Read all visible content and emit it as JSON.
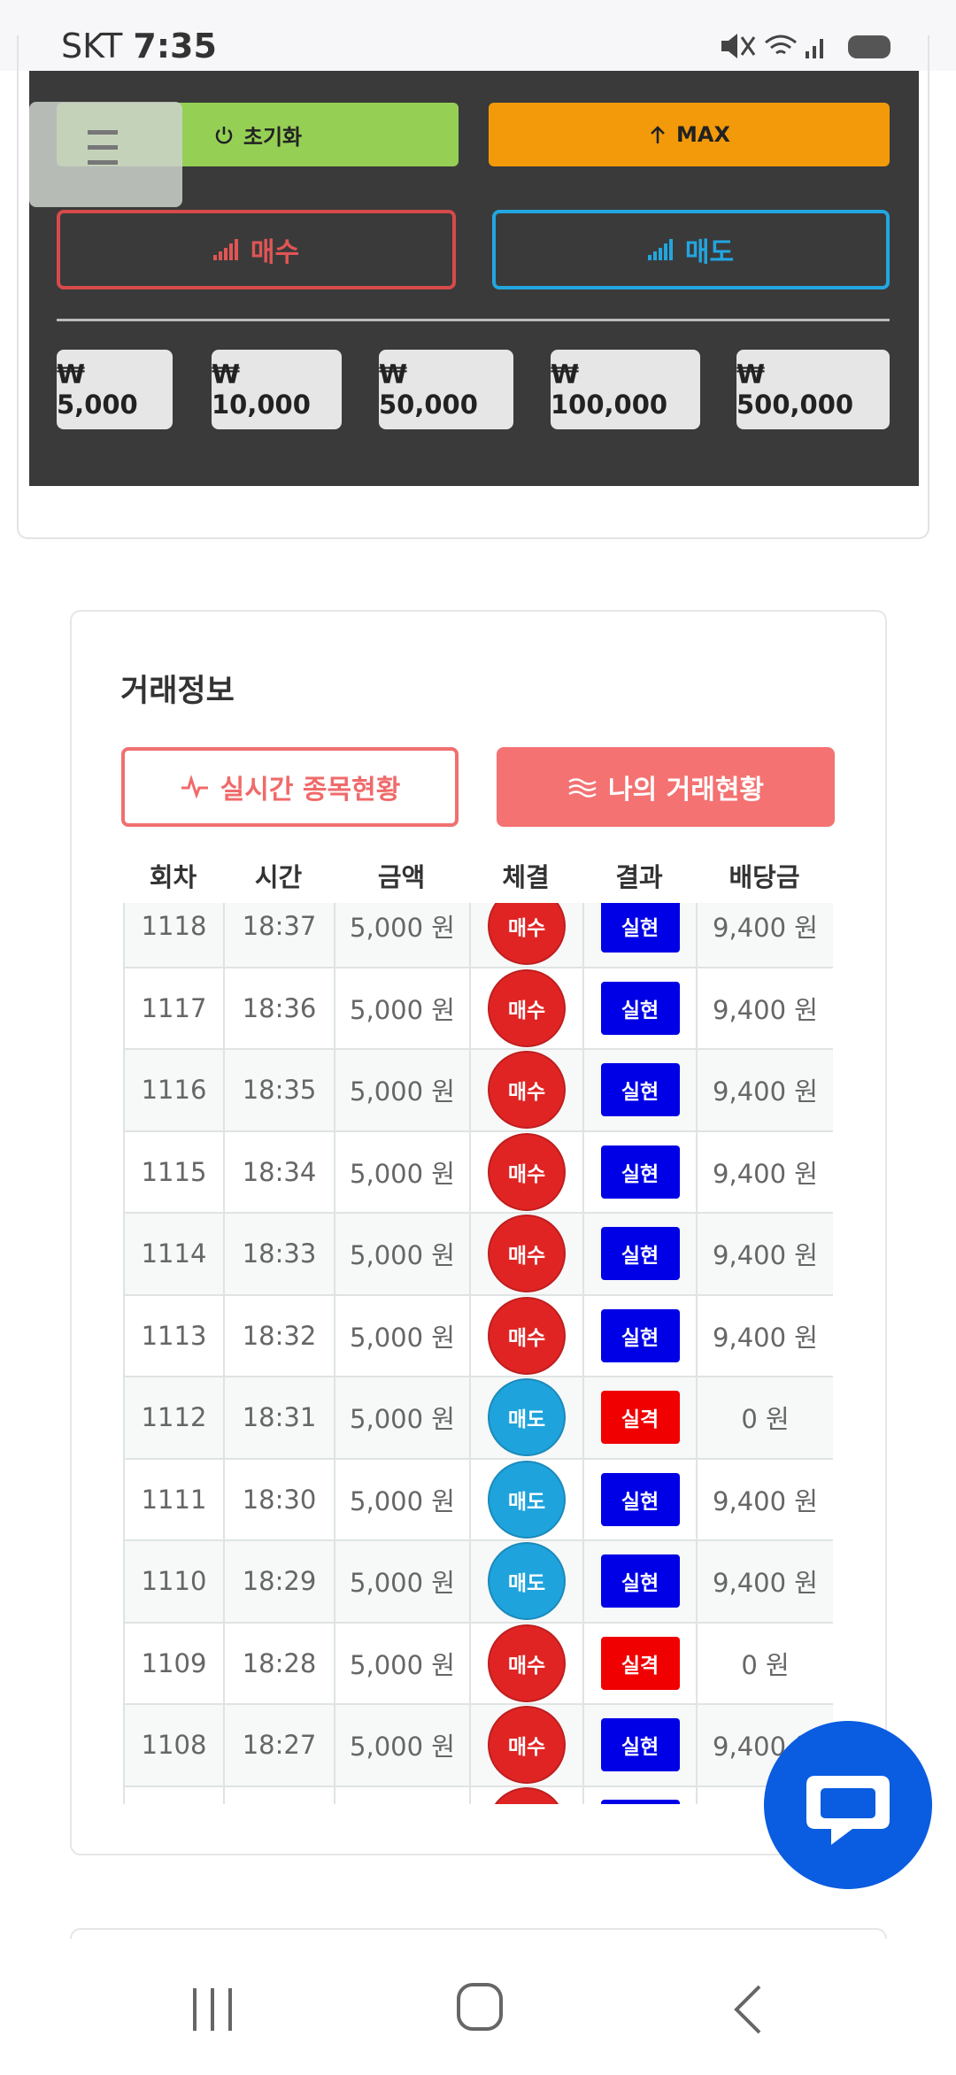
{
  "status": {
    "carrier": "SKT",
    "time": "7:35"
  },
  "controls": {
    "reset": "초기화",
    "max": "MAX",
    "buy": "매수",
    "sell": "매도",
    "amounts": [
      "₩ 5,000",
      "₩ 10,000",
      "₩ 50,000",
      "₩ 100,000",
      "₩ 500,000"
    ]
  },
  "trade": {
    "title": "거래정보",
    "tabs": [
      "실시간 종목현황",
      "나의 거래현황"
    ],
    "headers": [
      "회차",
      "시간",
      "금액",
      "체결",
      "결과",
      "배당금"
    ],
    "rows": [
      [
        "1118",
        "18:37",
        "5,000 원",
        "매수",
        "실현",
        "9,400 원"
      ],
      [
        "1117",
        "18:36",
        "5,000 원",
        "매수",
        "실현",
        "9,400 원"
      ],
      [
        "1116",
        "18:35",
        "5,000 원",
        "매수",
        "실현",
        "9,400 원"
      ],
      [
        "1115",
        "18:34",
        "5,000 원",
        "매수",
        "실현",
        "9,400 원"
      ],
      [
        "1114",
        "18:33",
        "5,000 원",
        "매수",
        "실현",
        "9,400 원"
      ],
      [
        "1113",
        "18:32",
        "5,000 원",
        "매수",
        "실현",
        "9,400 원"
      ],
      [
        "1112",
        "18:31",
        "5,000 원",
        "매도",
        "실격",
        "0 원"
      ],
      [
        "1111",
        "18:30",
        "5,000 원",
        "매도",
        "실현",
        "9,400 원"
      ],
      [
        "1110",
        "18:29",
        "5,000 원",
        "매도",
        "실현",
        "9,400 원"
      ],
      [
        "1109",
        "18:28",
        "5,000 원",
        "매수",
        "실격",
        "0 원"
      ],
      [
        "1108",
        "18:27",
        "5,000 원",
        "매수",
        "실현",
        "9,400 원"
      ]
    ]
  }
}
